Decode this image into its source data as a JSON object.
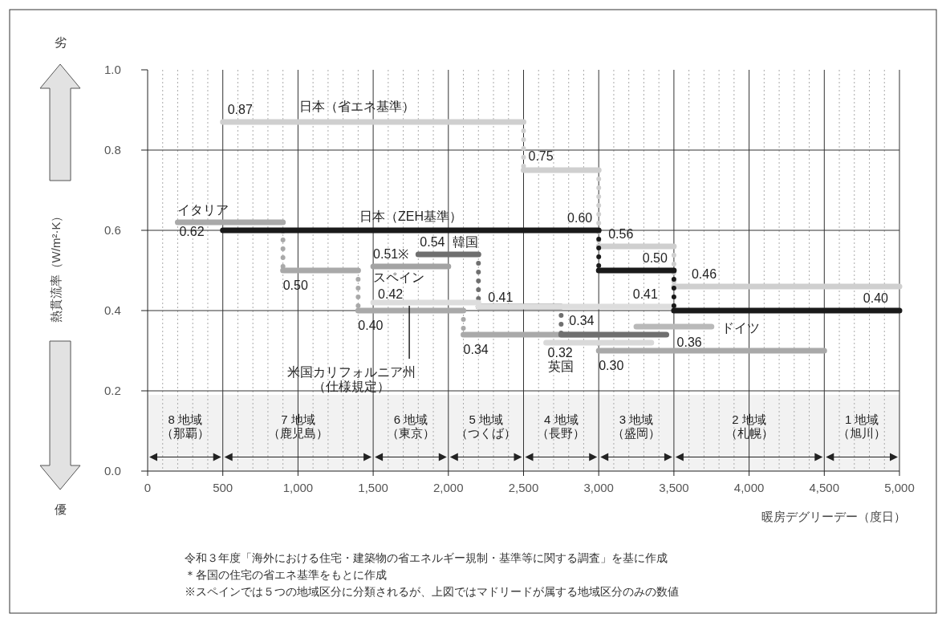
{
  "chart_data": {
    "type": "step",
    "xlabel": "暖房デグリーデー（度日）",
    "ylabel": "熱貫流率（W/m²·K）",
    "xlim": [
      0,
      5000
    ],
    "ylim": [
      0,
      1.0
    ],
    "xticks": [
      0,
      500,
      {
        "value": 1000,
        "label": "1,000"
      },
      {
        "value": 1500,
        "label": "1,500"
      },
      {
        "value": 2000,
        "label": "2,000"
      },
      {
        "value": 2500,
        "label": "2,500"
      },
      {
        "value": 3000,
        "label": "3,000"
      },
      {
        "value": 3500,
        "label": "3,500"
      },
      {
        "value": 4000,
        "label": "4,000"
      },
      {
        "value": 4500,
        "label": "4,500"
      },
      {
        "value": 5000,
        "label": "5,000"
      }
    ],
    "yticks": [
      {
        "value": 0,
        "label": "0.0"
      },
      0.2,
      0.4,
      0.6,
      0.8,
      {
        "value": 1,
        "label": "1.0"
      }
    ],
    "grid": true,
    "line_style": "solid",
    "series": [
      {
        "name": "日本（省エネ基準）",
        "color": "#cfcfcf",
        "x": [
          500,
          2500,
          3000,
          3500,
          5000
        ],
        "values": [
          0.87,
          0.75,
          0.56,
          0.46,
          0.46
        ],
        "value_labels": [
          "0.87",
          "0.75",
          "0.56",
          "0.46",
          null
        ]
      },
      {
        "name": "イタリア",
        "color": "#a9a9a9",
        "x": [
          200,
          900,
          1400,
          2100,
          3000,
          4500
        ],
        "values": [
          0.62,
          0.5,
          0.4,
          0.34,
          0.3,
          0.3
        ],
        "value_labels": [
          "0.62",
          "0.50",
          "0.40",
          "0.34",
          "0.30",
          null
        ]
      },
      {
        "name": "スペイン",
        "color": "#a3a3a3",
        "x": [
          1500,
          2000
        ],
        "values": [
          0.51,
          0.51
        ],
        "value_labels": [
          "0.51※",
          null
        ]
      },
      {
        "name": "韓国",
        "color": "#6f6f6f",
        "x": [
          1800,
          2200,
          2750,
          3450
        ],
        "values": [
          0.54,
          0.41,
          0.34,
          0.34
        ],
        "value_labels": [
          "0.54",
          "0.41",
          "0.34",
          null
        ]
      },
      {
        "name": "米国カリフォルニア州（仕様規定）",
        "color": "#dddddd",
        "x": [
          1500,
          2200,
          3500
        ],
        "values": [
          0.42,
          0.41,
          0.41
        ],
        "value_labels": [
          "0.42",
          null,
          "0.41"
        ]
      },
      {
        "name": "英国",
        "color": "#d9d9d9",
        "x": [
          2650,
          3350
        ],
        "values": [
          0.32,
          0.32
        ],
        "value_labels": [
          "0.32",
          null
        ]
      },
      {
        "name": "ドイツ",
        "color": "#b9b9b9",
        "x": [
          3250,
          3750
        ],
        "values": [
          0.36,
          0.36
        ],
        "value_labels": [
          null,
          "0.36"
        ]
      },
      {
        "name": "日本（ZEH基準）",
        "color": "#1a1a1a",
        "x": [
          500,
          3000,
          3000,
          3500,
          3500,
          5000
        ],
        "values": [
          0.6,
          0.6,
          0.5,
          0.5,
          0.4,
          0.4
        ],
        "value_labels": [
          null,
          "0.60",
          null,
          "0.50",
          null,
          "0.40"
        ]
      }
    ],
    "bands": [
      {
        "axis": "x",
        "from": 0,
        "to": 500,
        "label": "8 地域（那覇）",
        "color": "#f2f2f2"
      },
      {
        "axis": "x",
        "from": 500,
        "to": 1500,
        "label": "7 地域（鹿児島）",
        "color": "#f2f2f2"
      },
      {
        "axis": "x",
        "from": 1500,
        "to": 2000,
        "label": "6 地域（東京）",
        "color": "#f2f2f2"
      },
      {
        "axis": "x",
        "from": 2000,
        "to": 2500,
        "label": "5 地域（つくば）",
        "color": "#f2f2f2"
      },
      {
        "axis": "x",
        "from": 2500,
        "to": 3000,
        "label": "4 地域（長野）",
        "color": "#f2f2f2"
      },
      {
        "axis": "x",
        "from": 3000,
        "to": 3500,
        "label": "3 地域（盛岡）",
        "color": "#f2f2f2"
      },
      {
        "axis": "x",
        "from": 3500,
        "to": 4500,
        "label": "2 地域（札幌）",
        "color": "#f2f2f2"
      },
      {
        "axis": "x",
        "from": 4500,
        "to": 5000,
        "label": "1 地域（旭川）",
        "color": "#f2f2f2"
      }
    ],
    "annotations": [
      "劣",
      "優",
      "令和３年度「海外における住宅・建築物の省エネルギー規制・基準等に関する調査」を基に作成",
      "＊各国の住宅の省エネ基準をもとに作成",
      "※スペインでは５つの地域区分に分類されるが、上図ではマドリードが属する地域区分のみの数値"
    ]
  }
}
